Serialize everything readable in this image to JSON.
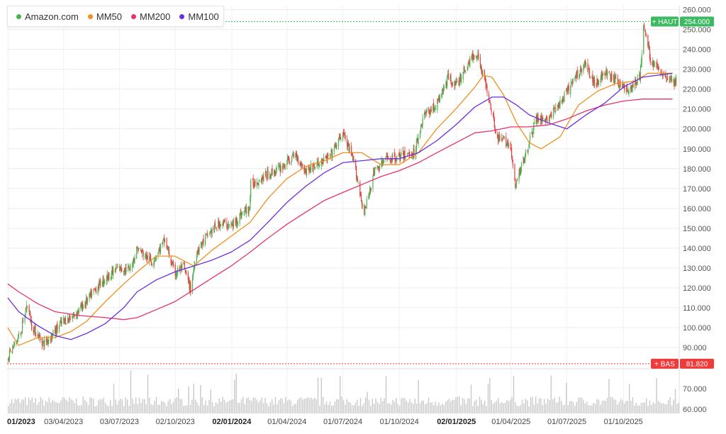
{
  "legend": {
    "items": [
      {
        "label": "Amazon.com",
        "color": "#4caf50"
      },
      {
        "label": "MM50",
        "color": "#f0901e"
      },
      {
        "label": "MM200",
        "color": "#e8336b"
      },
      {
        "label": "MM100",
        "color": "#6b2fe0"
      }
    ]
  },
  "markers": {
    "high": {
      "label": "+ HAUT",
      "value": "254.000",
      "color": "#3cba62"
    },
    "low": {
      "label": "+ BAS",
      "value": "81.820",
      "color": "#ef3b3b"
    }
  },
  "chart_data": {
    "type": "line",
    "title": "",
    "xlabel": "",
    "ylabel": "",
    "price_axis": {
      "ylim": [
        80,
        262
      ],
      "ticks": [
        "260.000",
        "250.000",
        "240.000",
        "230.000",
        "220.000",
        "210.000",
        "200.000",
        "190.000",
        "180.000",
        "170.000",
        "160.000",
        "150.000",
        "140.000",
        "130.000",
        "120.000",
        "110.000",
        "100.000",
        "90.000"
      ],
      "tick_values": [
        260,
        250,
        240,
        230,
        220,
        210,
        200,
        190,
        180,
        170,
        160,
        150,
        140,
        130,
        120,
        110,
        100,
        90
      ]
    },
    "volume_axis": {
      "ticks": [
        "70.000",
        "60.000"
      ],
      "tick_values": [
        70,
        60
      ]
    },
    "x_axis": {
      "ticks": [
        "01/2023",
        "03/04/2023",
        "03/07/2023",
        "02/10/2023",
        "02/01/2024",
        "01/04/2024",
        "01/07/2024",
        "01/10/2024",
        "02/01/2025",
        "01/04/2025",
        "01/07/2025",
        "01/10/2025"
      ],
      "bold": [
        true,
        false,
        false,
        false,
        true,
        false,
        false,
        false,
        true,
        false,
        false,
        false
      ],
      "tick_dates": [
        "2023-01-03",
        "2023-04-03",
        "2023-07-03",
        "2023-10-02",
        "2024-01-02",
        "2024-04-01",
        "2024-07-01",
        "2024-10-01",
        "2025-01-02",
        "2025-04-01",
        "2025-07-01",
        "2025-10-01"
      ],
      "range": [
        "2023-01-01",
        "2025-12-31"
      ]
    },
    "grid": true,
    "legend_position": "top-left",
    "high_value": 254.0,
    "low_value": 81.82,
    "series": [
      {
        "name": "Amazon.com",
        "kind": "candlestick",
        "color_up": "#4caf50",
        "color_down": "#ef3b3b",
        "points": [
          [
            "2023-01-02",
            85
          ],
          [
            "2023-01-23",
            97
          ],
          [
            "2023-02-03",
            112
          ],
          [
            "2023-02-10",
            101
          ],
          [
            "2023-03-01",
            92
          ],
          [
            "2023-03-15",
            96
          ],
          [
            "2023-04-01",
            103
          ],
          [
            "2023-04-20",
            106
          ],
          [
            "2023-05-10",
            113
          ],
          [
            "2023-06-01",
            122
          ],
          [
            "2023-06-15",
            126
          ],
          [
            "2023-07-01",
            130
          ],
          [
            "2023-07-20",
            129
          ],
          [
            "2023-08-01",
            140
          ],
          [
            "2023-08-25",
            133
          ],
          [
            "2023-09-15",
            144
          ],
          [
            "2023-10-01",
            127
          ],
          [
            "2023-10-15",
            131
          ],
          [
            "2023-10-27",
            119
          ],
          [
            "2023-11-05",
            138
          ],
          [
            "2023-11-25",
            147
          ],
          [
            "2023-12-15",
            153
          ],
          [
            "2024-01-02",
            151
          ],
          [
            "2024-01-20",
            158
          ],
          [
            "2024-01-31",
            160
          ],
          [
            "2024-02-02",
            172
          ],
          [
            "2024-03-01",
            177
          ],
          [
            "2024-03-20",
            180
          ],
          [
            "2024-04-15",
            187
          ],
          [
            "2024-05-01",
            179
          ],
          [
            "2024-05-20",
            182
          ],
          [
            "2024-06-10",
            186
          ],
          [
            "2024-07-01",
            198
          ],
          [
            "2024-07-20",
            182
          ],
          [
            "2024-08-05",
            157
          ],
          [
            "2024-08-20",
            178
          ],
          [
            "2024-09-10",
            185
          ],
          [
            "2024-10-01",
            186
          ],
          [
            "2024-10-25",
            188
          ],
          [
            "2024-11-10",
            207
          ],
          [
            "2024-12-01",
            212
          ],
          [
            "2024-12-20",
            226
          ],
          [
            "2025-01-02",
            222
          ],
          [
            "2025-01-25",
            235
          ],
          [
            "2025-02-05",
            238
          ],
          [
            "2025-02-25",
            215
          ],
          [
            "2025-03-10",
            195
          ],
          [
            "2025-03-30",
            193
          ],
          [
            "2025-04-08",
            171
          ],
          [
            "2025-04-20",
            183
          ],
          [
            "2025-05-12",
            205
          ],
          [
            "2025-06-01",
            205
          ],
          [
            "2025-06-25",
            215
          ],
          [
            "2025-07-15",
            226
          ],
          [
            "2025-07-30",
            233
          ],
          [
            "2025-08-15",
            223
          ],
          [
            "2025-09-01",
            228
          ],
          [
            "2025-09-20",
            224
          ],
          [
            "2025-10-10",
            219
          ],
          [
            "2025-10-28",
            226
          ],
          [
            "2025-11-03",
            252
          ],
          [
            "2025-11-15",
            234
          ],
          [
            "2025-12-01",
            229
          ],
          [
            "2025-12-20",
            224
          ]
        ]
      },
      {
        "name": "MM50",
        "color": "#f0901e",
        "points": [
          [
            "2023-01-02",
            100
          ],
          [
            "2023-01-20",
            91
          ],
          [
            "2023-02-20",
            95
          ],
          [
            "2023-03-20",
            95
          ],
          [
            "2023-04-15",
            98
          ],
          [
            "2023-05-10",
            103
          ],
          [
            "2023-06-10",
            113
          ],
          [
            "2023-07-10",
            122
          ],
          [
            "2023-08-01",
            128
          ],
          [
            "2023-09-01",
            136
          ],
          [
            "2023-10-01",
            136
          ],
          [
            "2023-11-01",
            131
          ],
          [
            "2023-12-01",
            139
          ],
          [
            "2024-01-01",
            146
          ],
          [
            "2024-02-01",
            153
          ],
          [
            "2024-03-01",
            165
          ],
          [
            "2024-04-01",
            175
          ],
          [
            "2024-05-01",
            181
          ],
          [
            "2024-06-01",
            184
          ],
          [
            "2024-07-01",
            188
          ],
          [
            "2024-08-01",
            188
          ],
          [
            "2024-09-01",
            182
          ],
          [
            "2024-10-01",
            182
          ],
          [
            "2024-11-01",
            188
          ],
          [
            "2024-12-01",
            200
          ],
          [
            "2025-01-01",
            210
          ],
          [
            "2025-02-01",
            221
          ],
          [
            "2025-02-15",
            227
          ],
          [
            "2025-03-01",
            226
          ],
          [
            "2025-03-20",
            217
          ],
          [
            "2025-04-10",
            203
          ],
          [
            "2025-05-01",
            193
          ],
          [
            "2025-05-20",
            190
          ],
          [
            "2025-06-20",
            196
          ],
          [
            "2025-07-20",
            212
          ],
          [
            "2025-08-20",
            219
          ],
          [
            "2025-09-20",
            223
          ],
          [
            "2025-10-20",
            224
          ],
          [
            "2025-11-10",
            228
          ],
          [
            "2025-12-20",
            228
          ]
        ]
      },
      {
        "name": "MM200",
        "color": "#e8336b",
        "points": [
          [
            "2023-01-02",
            122
          ],
          [
            "2023-01-20",
            118
          ],
          [
            "2023-02-20",
            112
          ],
          [
            "2023-03-20",
            108
          ],
          [
            "2023-05-01",
            106
          ],
          [
            "2023-06-10",
            105
          ],
          [
            "2023-07-10",
            104
          ],
          [
            "2023-08-01",
            105
          ],
          [
            "2023-09-01",
            109
          ],
          [
            "2023-10-01",
            113
          ],
          [
            "2023-11-01",
            119
          ],
          [
            "2023-12-01",
            125
          ],
          [
            "2024-01-01",
            131
          ],
          [
            "2024-02-01",
            138
          ],
          [
            "2024-03-01",
            145
          ],
          [
            "2024-04-01",
            152
          ],
          [
            "2024-05-01",
            158
          ],
          [
            "2024-06-01",
            164
          ],
          [
            "2024-07-01",
            168
          ],
          [
            "2024-08-01",
            172
          ],
          [
            "2024-09-01",
            176
          ],
          [
            "2024-10-01",
            179
          ],
          [
            "2024-11-01",
            183
          ],
          [
            "2024-12-01",
            188
          ],
          [
            "2025-01-01",
            193
          ],
          [
            "2025-02-01",
            198
          ],
          [
            "2025-03-01",
            199
          ],
          [
            "2025-04-01",
            201
          ],
          [
            "2025-05-01",
            201
          ],
          [
            "2025-06-01",
            202
          ],
          [
            "2025-07-01",
            205
          ],
          [
            "2025-08-01",
            209
          ],
          [
            "2025-09-01",
            212
          ],
          [
            "2025-10-01",
            214
          ],
          [
            "2025-11-01",
            215
          ],
          [
            "2025-12-20",
            215
          ]
        ]
      },
      {
        "name": "MM100",
        "color": "#6b2fe0",
        "points": [
          [
            "2023-01-02",
            115
          ],
          [
            "2023-01-20",
            108
          ],
          [
            "2023-02-20",
            101
          ],
          [
            "2023-03-20",
            96
          ],
          [
            "2023-04-15",
            94
          ],
          [
            "2023-05-10",
            97
          ],
          [
            "2023-06-10",
            102
          ],
          [
            "2023-07-10",
            110
          ],
          [
            "2023-08-01",
            118
          ],
          [
            "2023-09-01",
            124
          ],
          [
            "2023-10-01",
            128
          ],
          [
            "2023-11-01",
            131
          ],
          [
            "2023-12-01",
            134
          ],
          [
            "2024-01-01",
            138
          ],
          [
            "2024-02-01",
            144
          ],
          [
            "2024-03-01",
            153
          ],
          [
            "2024-04-01",
            163
          ],
          [
            "2024-05-01",
            171
          ],
          [
            "2024-06-01",
            178
          ],
          [
            "2024-07-01",
            183
          ],
          [
            "2024-08-01",
            184
          ],
          [
            "2024-09-01",
            185
          ],
          [
            "2024-10-01",
            185
          ],
          [
            "2024-11-01",
            188
          ],
          [
            "2024-12-01",
            194
          ],
          [
            "2025-01-01",
            202
          ],
          [
            "2025-02-01",
            211
          ],
          [
            "2025-03-01",
            216
          ],
          [
            "2025-03-20",
            216
          ],
          [
            "2025-04-10",
            212
          ],
          [
            "2025-05-01",
            207
          ],
          [
            "2025-06-01",
            203
          ],
          [
            "2025-07-01",
            200
          ],
          [
            "2025-08-01",
            207
          ],
          [
            "2025-09-01",
            213
          ],
          [
            "2025-10-01",
            221
          ],
          [
            "2025-11-01",
            226
          ],
          [
            "2025-12-20",
            228
          ]
        ]
      }
    ]
  }
}
